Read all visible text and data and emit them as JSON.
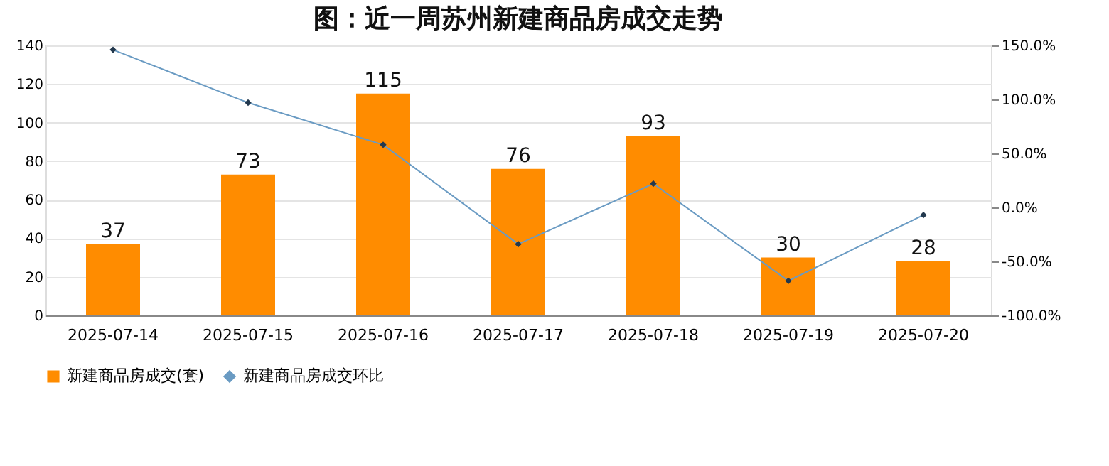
{
  "chart_data": {
    "type": "bar",
    "title": "图：近一周苏州新建商品房成交走势",
    "categories": [
      "2025-07-14",
      "2025-07-15",
      "2025-07-16",
      "2025-07-17",
      "2025-07-18",
      "2025-07-19",
      "2025-07-20"
    ],
    "series": [
      {
        "name": "新建商品房成交(套)",
        "color": "#ff8c00",
        "values": [
          37,
          73,
          115,
          76,
          93,
          30,
          28
        ],
        "value_labels": [
          "37",
          "73",
          "115",
          "76",
          "93",
          "30",
          "28"
        ]
      },
      {
        "name": "新建商品房成交环比",
        "type": "line",
        "axis": "y2",
        "color": "#6a9bc3",
        "marker": "diamond",
        "values": [
          146,
          97,
          58,
          -34,
          22,
          -68,
          -7
        ]
      }
    ],
    "ylim": [
      0,
      140
    ],
    "yticks": [
      0,
      20,
      40,
      60,
      80,
      100,
      120,
      140
    ],
    "y2lim": [
      -100,
      150
    ],
    "y2ticks": [
      {
        "value": -100,
        "label": "-100.0%"
      },
      {
        "value": -50,
        "label": "-50.0%"
      },
      {
        "value": 0,
        "label": "0.0%"
      },
      {
        "value": 50,
        "label": "50.0%"
      },
      {
        "value": 100,
        "label": "100.0%"
      },
      {
        "value": 150,
        "label": "150.0%"
      }
    ],
    "grid": "y",
    "legend": "bottom"
  }
}
